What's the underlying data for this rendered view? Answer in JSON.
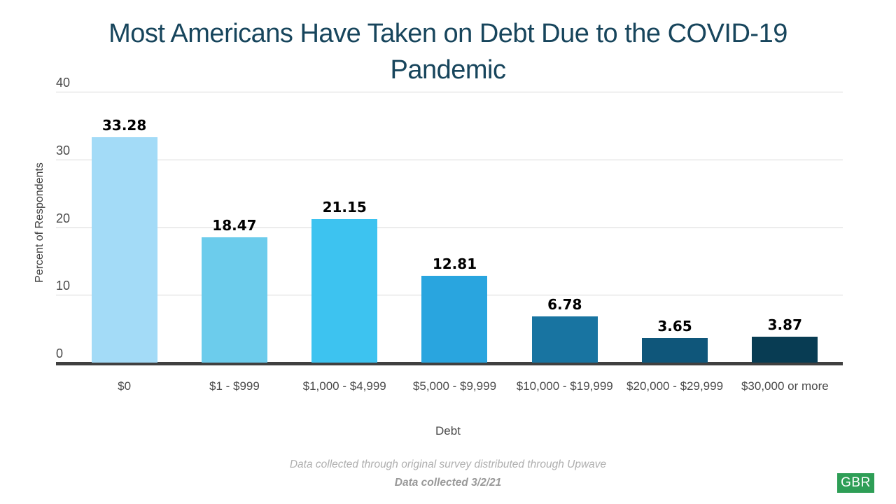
{
  "chart_data": {
    "type": "bar",
    "title": "Most Americans Have Taken on Debt Due to the COVID-19 Pandemic",
    "xlabel": "Debt",
    "ylabel": "Percent of Respondents",
    "categories": [
      "$0",
      "$1 - $999",
      "$1,000 - $4,999",
      "$5,000 - $9,999",
      "$10,000 - $19,999",
      "$20,000 - $29,999",
      "$30,000 or more"
    ],
    "values": [
      33.28,
      18.47,
      21.15,
      12.81,
      6.78,
      3.65,
      3.87
    ],
    "value_labels": [
      "33.28",
      "18.47",
      "21.15",
      "12.81",
      "6.78",
      "3.65",
      "3.87"
    ],
    "bar_colors": [
      "#A3DBF7",
      "#6CCCEC",
      "#3DC3F0",
      "#29A5DF",
      "#1874A1",
      "#0F567A",
      "#083C53"
    ],
    "ylim": [
      0,
      40
    ],
    "yticks": [
      0,
      10,
      20,
      30,
      40
    ],
    "grid": "horizontal",
    "legend": "none",
    "title_color": "#17455C",
    "axis_line_color": "#404040",
    "gridline_color": "#d9d9d9"
  },
  "footer": {
    "note1": "Data collected through original survey distributed through Upwave",
    "note2": "Data collected 3/2/21"
  },
  "logo": {
    "text": "GBR",
    "bg_color": "#2E9E56"
  }
}
